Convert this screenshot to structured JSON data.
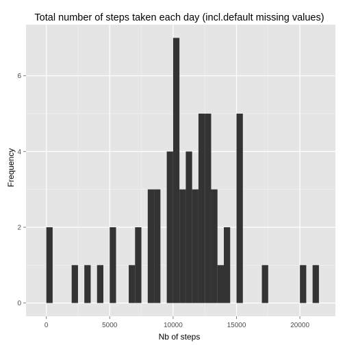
{
  "chart_data": {
    "type": "bar",
    "title": "Total number of steps taken each day (incl.default missing values)",
    "xlabel": "Nb of steps",
    "ylabel": "Frequency",
    "bin_width": 500,
    "xlim": [
      -1600,
      22800
    ],
    "ylim": [
      -0.35,
      7.35
    ],
    "x_ticks": [
      0,
      5000,
      10000,
      15000,
      20000
    ],
    "x_tick_labels": [
      "0",
      "5000",
      "10000",
      "15000",
      "20000"
    ],
    "y_ticks": [
      0,
      2,
      4,
      6
    ],
    "y_tick_labels": [
      "0",
      "2",
      "4",
      "6"
    ],
    "grid": true,
    "bins": [
      {
        "start": 0,
        "end": 500,
        "count": 2
      },
      {
        "start": 2000,
        "end": 2500,
        "count": 1
      },
      {
        "start": 3000,
        "end": 3500,
        "count": 1
      },
      {
        "start": 4000,
        "end": 4500,
        "count": 1
      },
      {
        "start": 5000,
        "end": 5500,
        "count": 2
      },
      {
        "start": 6500,
        "end": 7000,
        "count": 1
      },
      {
        "start": 7000,
        "end": 7500,
        "count": 2
      },
      {
        "start": 8000,
        "end": 8500,
        "count": 3
      },
      {
        "start": 8500,
        "end": 9000,
        "count": 3
      },
      {
        "start": 9500,
        "end": 10000,
        "count": 4
      },
      {
        "start": 10000,
        "end": 10500,
        "count": 7
      },
      {
        "start": 10500,
        "end": 11000,
        "count": 3
      },
      {
        "start": 11000,
        "end": 11500,
        "count": 4
      },
      {
        "start": 11500,
        "end": 12000,
        "count": 3
      },
      {
        "start": 12000,
        "end": 12500,
        "count": 5
      },
      {
        "start": 12500,
        "end": 13000,
        "count": 5
      },
      {
        "start": 13000,
        "end": 13500,
        "count": 3
      },
      {
        "start": 13500,
        "end": 14000,
        "count": 1
      },
      {
        "start": 14000,
        "end": 14500,
        "count": 2
      },
      {
        "start": 15000,
        "end": 15500,
        "count": 5
      },
      {
        "start": 17000,
        "end": 17500,
        "count": 1
      },
      {
        "start": 20000,
        "end": 20500,
        "count": 1
      },
      {
        "start": 21000,
        "end": 21500,
        "count": 1
      }
    ]
  },
  "colors": {
    "panel": "#e5e5e5",
    "grid_major": "#ffffff",
    "grid_minor": "#f2f2f2",
    "bar": "#333333"
  }
}
